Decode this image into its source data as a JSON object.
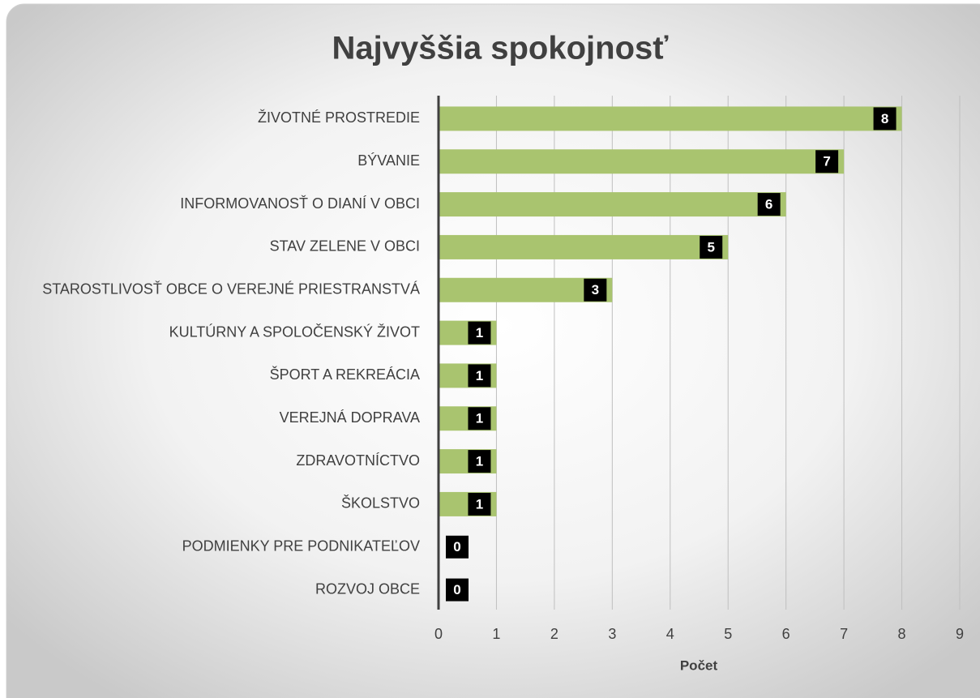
{
  "chart_data": {
    "type": "barh",
    "title": "Najvyššia spokojnosť",
    "x_label": "Počet",
    "categories": [
      "ŽIVOTNÉ PROSTREDIE",
      "BÝVANIE",
      "INFORMOVANOSŤ O DIANÍ V OBCI",
      "STAV ZELENE V OBCI",
      "STAROSTLIVOSŤ OBCE O VEREJNÉ PRIESTRANSTVÁ",
      "KULTÚRNY A SPOLOČENSKÝ ŽIVOT",
      "ŠPORT A REKREÁCIA",
      "VEREJNÁ DOPRAVA",
      "ZDRAVOTNÍCTVO",
      "ŠKOLSTVO",
      "PODMIENKY PRE PODNIKATEĽOV",
      "ROZVOJ OBCE"
    ],
    "values": [
      8,
      7,
      6,
      5,
      3,
      1,
      1,
      1,
      1,
      1,
      0,
      0
    ],
    "color": "#a9c46f",
    "xlim": [
      0,
      9
    ],
    "xticks": [
      0,
      1,
      2,
      3,
      4,
      5,
      6,
      7,
      8,
      9
    ],
    "grid": true
  }
}
